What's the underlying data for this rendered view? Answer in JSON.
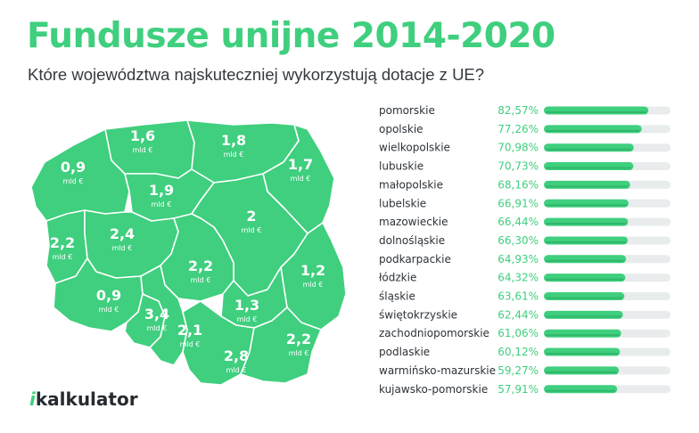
{
  "title": "Fundusze unijne 2014-2020",
  "subtitle": "Które województwa najskuteczniej wykorzystują dotacje z UE?",
  "logo": {
    "mark": "i",
    "text": "kalkulator"
  },
  "colors": {
    "accent": "#3fcf7e",
    "map_fill": "#3fcf7e",
    "map_border": "#ffffff",
    "bar_fill": "#3fcf7e",
    "bar_track": "#e8ecec",
    "percent_text": "#3fcf7e",
    "label_text": "#2c3238"
  },
  "map_labels": [
    {
      "value": "1,6",
      "unit": "mld €"
    },
    {
      "value": "1,8",
      "unit": "mld €"
    },
    {
      "value": "0,9",
      "unit": "mld €"
    },
    {
      "value": "1,7",
      "unit": "mld €"
    },
    {
      "value": "1,9",
      "unit": "mld €"
    },
    {
      "value": "2",
      "unit": "mld €"
    },
    {
      "value": "2,2",
      "unit": "mld €"
    },
    {
      "value": "2,4",
      "unit": "mld €"
    },
    {
      "value": "2,2",
      "unit": "mld €"
    },
    {
      "value": "1,2",
      "unit": "mld €"
    },
    {
      "value": "0,9",
      "unit": "mld €"
    },
    {
      "value": "1,3",
      "unit": "mld €"
    },
    {
      "value": "3,4",
      "unit": "mld €"
    },
    {
      "value": "2,1",
      "unit": "mld €"
    },
    {
      "value": "2,8",
      "unit": "mld €"
    },
    {
      "value": "2,2",
      "unit": "mld €"
    }
  ],
  "chart_data": {
    "type": "bar",
    "orientation": "horizontal",
    "title": "Które województwa najskuteczniej wykorzystują dotacje z UE?",
    "xlim": [
      0,
      100
    ],
    "categories": [
      "pomorskie",
      "opolskie",
      "wielkopolskie",
      "lubuskie",
      "małopolskie",
      "lubelskie",
      "mazowieckie",
      "dolnośląskie",
      "podkarpackie",
      "łódzkie",
      "śląskie",
      "świętokrzyskie",
      "zachodniopomorskie",
      "podlaskie",
      "warmińsko-mazurskie",
      "kujawsko-pomorskie"
    ],
    "values": [
      82.57,
      77.26,
      70.98,
      70.73,
      68.16,
      66.91,
      66.44,
      66.3,
      64.93,
      64.32,
      63.61,
      62.44,
      61.06,
      60.12,
      59.27,
      57.91
    ],
    "value_labels": [
      "82,57%",
      "77,26%",
      "70,98%",
      "70,73%",
      "68,16%",
      "66,91%",
      "66,44%",
      "66,30%",
      "64,93%",
      "64,32%",
      "63,61%",
      "62,44%",
      "61,06%",
      "60,12%",
      "59,27%",
      "57,91%"
    ]
  }
}
